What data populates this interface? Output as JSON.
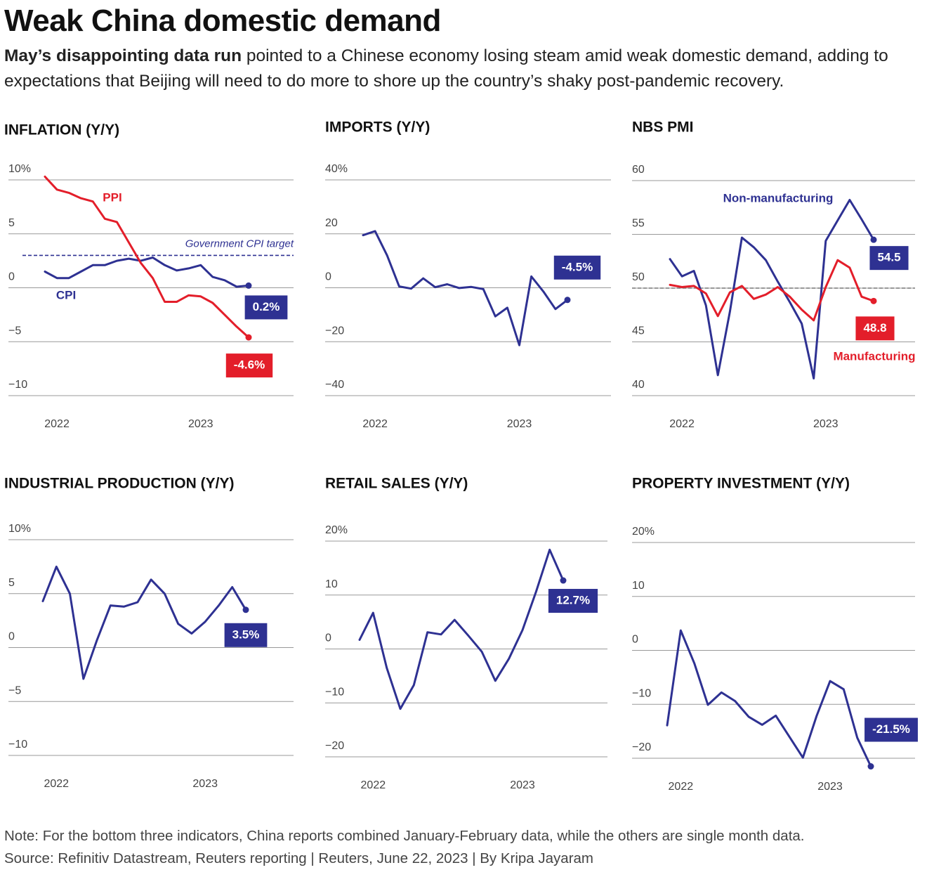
{
  "header": {
    "title": "Weak China domestic demand",
    "subtitle_bold": "May’s disappointing data run",
    "subtitle": "pointed to a Chinese economy losing steam amid weak domestic demand, adding to expectations that Beijing will need to do more to shore up the country’s shaky post-pandemic recovery."
  },
  "chart_data": [
    {
      "type": "line",
      "title": "INFLATION (Y/Y)",
      "categories": [
        null,
        "2022",
        null,
        null,
        null,
        null,
        null,
        null,
        null,
        null,
        null,
        null,
        null,
        "2023",
        null,
        null,
        null,
        null
      ],
      "ylim": [
        -10,
        10
      ],
      "yticks": [
        {
          "value": 10,
          "label": "10%"
        },
        5,
        0,
        {
          "value": -5,
          "label": "−5"
        },
        {
          "value": -10,
          "label": "−10"
        }
      ],
      "reference_line": {
        "value": 3,
        "label": "Government CPI target"
      },
      "series": [
        {
          "name": "CPI",
          "color": "#2e3192",
          "values": [
            1.5,
            0.9,
            0.9,
            1.5,
            2.1,
            2.1,
            2.5,
            2.7,
            2.5,
            2.8,
            2.1,
            1.6,
            1.8,
            2.1,
            1.0,
            0.7,
            0.1,
            0.2
          ],
          "value_labels": [
            null,
            null,
            null,
            null,
            null,
            null,
            null,
            null,
            null,
            null,
            null,
            null,
            null,
            null,
            null,
            null,
            null,
            "0.2%"
          ]
        },
        {
          "name": "PPI",
          "color": "#e31e2a",
          "values": [
            10.3,
            9.1,
            8.8,
            8.3,
            8.0,
            6.4,
            6.1,
            4.2,
            2.3,
            0.9,
            -1.3,
            -1.3,
            -0.7,
            -0.8,
            -1.4,
            -2.5,
            -3.6,
            -4.6
          ],
          "value_labels": [
            null,
            null,
            null,
            null,
            null,
            null,
            null,
            null,
            null,
            null,
            null,
            null,
            null,
            null,
            null,
            null,
            null,
            "-4.6%"
          ]
        }
      ]
    },
    {
      "type": "line",
      "title": "IMPORTS (Y/Y)",
      "categories": [
        null,
        "2022",
        null,
        null,
        null,
        null,
        null,
        null,
        null,
        null,
        null,
        null,
        null,
        "2023",
        null,
        null,
        null,
        null
      ],
      "ylim": [
        -40,
        40
      ],
      "yticks": [
        {
          "value": 40,
          "label": "40%"
        },
        20,
        0,
        {
          "value": -20,
          "label": "−20"
        },
        {
          "value": -40,
          "label": "−40"
        }
      ],
      "series": [
        {
          "color": "#2e3192",
          "values": [
            19.5,
            21.0,
            12.0,
            0.5,
            -0.3,
            3.5,
            0.2,
            1.3,
            -0.1,
            0.3,
            -0.5,
            -10.6,
            -7.4,
            -21.3,
            4.2,
            -1.4,
            -7.9,
            -4.5
          ],
          "value_labels": [
            null,
            null,
            null,
            null,
            null,
            null,
            null,
            null,
            null,
            null,
            null,
            null,
            null,
            null,
            null,
            null,
            null,
            "-4.5%"
          ]
        }
      ]
    },
    {
      "type": "line",
      "title": "NBS PMI",
      "categories": [
        null,
        "2022",
        null,
        null,
        null,
        null,
        null,
        null,
        null,
        null,
        null,
        null,
        null,
        "2023",
        null,
        null,
        null,
        null
      ],
      "ylim": [
        40,
        60
      ],
      "yticks": [
        60,
        55,
        50,
        45,
        40
      ],
      "reference_line": {
        "value": 50
      },
      "series": [
        {
          "name": "Non-manufacturing",
          "color": "#2e3192",
          "values": [
            52.7,
            51.1,
            51.6,
            48.4,
            41.9,
            47.8,
            54.7,
            53.8,
            52.6,
            50.6,
            48.7,
            46.7,
            41.6,
            54.4,
            56.3,
            58.2,
            56.4,
            54.5
          ]
        },
        {
          "name": "Manufacturing",
          "color": "#e31e2a",
          "values": [
            50.3,
            50.1,
            50.2,
            49.5,
            47.4,
            49.6,
            50.2,
            49.0,
            49.4,
            50.1,
            49.2,
            48.0,
            47.0,
            50.1,
            52.6,
            51.9,
            49.2,
            48.8
          ]
        }
      ]
    },
    {
      "type": "line",
      "title": "INDUSTRIAL PRODUCTION (Y/Y)",
      "categories": [
        null,
        "2022",
        null,
        null,
        null,
        null,
        null,
        null,
        null,
        null,
        null,
        null,
        "2023",
        null,
        null,
        null
      ],
      "ylim": [
        -10,
        10
      ],
      "yticks": [
        {
          "value": 10,
          "label": "10%"
        },
        5,
        0,
        {
          "value": -5,
          "label": "−5"
        },
        {
          "value": -10,
          "label": "−10"
        }
      ],
      "series": [
        {
          "color": "#2e3192",
          "values": [
            4.3,
            7.5,
            5.0,
            -2.9,
            0.7,
            3.9,
            3.8,
            4.2,
            6.3,
            5.0,
            2.2,
            1.3,
            2.4,
            3.9,
            5.6,
            3.5
          ],
          "value_labels": [
            null,
            null,
            null,
            null,
            null,
            null,
            null,
            null,
            null,
            null,
            null,
            null,
            null,
            null,
            null,
            "3.5%"
          ]
        }
      ]
    },
    {
      "type": "line",
      "title": "RETAIL SALES (Y/Y)",
      "categories": [
        null,
        "2022",
        null,
        null,
        null,
        null,
        null,
        null,
        null,
        null,
        null,
        null,
        "2023",
        null,
        null,
        null
      ],
      "ylim": [
        -20,
        20
      ],
      "yticks": [
        {
          "value": 20,
          "label": "20%"
        },
        10,
        0,
        {
          "value": -10,
          "label": "−10"
        },
        {
          "value": -20,
          "label": "−20"
        }
      ],
      "series": [
        {
          "color": "#2e3192",
          "values": [
            1.7,
            6.7,
            -3.5,
            -11.1,
            -6.7,
            3.1,
            2.7,
            5.4,
            2.5,
            -0.5,
            -5.9,
            -1.8,
            3.5,
            10.6,
            18.4,
            12.7
          ],
          "value_labels": [
            null,
            null,
            null,
            null,
            null,
            null,
            null,
            null,
            null,
            null,
            null,
            null,
            null,
            null,
            null,
            "12.7%"
          ]
        }
      ]
    },
    {
      "type": "line",
      "title": "PROPERTY INVESTMENT (Y/Y)",
      "categories": [
        null,
        "2022",
        null,
        null,
        null,
        null,
        null,
        null,
        null,
        null,
        null,
        null,
        "2023",
        null,
        null,
        null
      ],
      "ylim": [
        -20,
        20
      ],
      "yticks": [
        {
          "value": 20,
          "label": "20%"
        },
        10,
        0,
        {
          "value": -10,
          "label": "−10"
        },
        {
          "value": -20,
          "label": "−20"
        }
      ],
      "series": [
        {
          "color": "#2e3192",
          "values": [
            -13.9,
            3.7,
            -2.4,
            -10.1,
            -7.8,
            -9.4,
            -12.3,
            -13.8,
            -12.1,
            -16.0,
            -19.9,
            -12.2,
            -5.7,
            -7.2,
            -16.2,
            -21.5
          ],
          "value_labels": [
            null,
            null,
            null,
            null,
            null,
            null,
            null,
            null,
            null,
            null,
            null,
            null,
            null,
            null,
            null,
            "-21.5%"
          ]
        }
      ]
    }
  ],
  "footer": {
    "note": "Note: For the bottom three indicators, China reports combined January-February data, while the others are single month data.",
    "source": "Source: Refinitiv Datastream, Reuters reporting | Reuters, June 22, 2023 | By Kripa Jayaram"
  }
}
